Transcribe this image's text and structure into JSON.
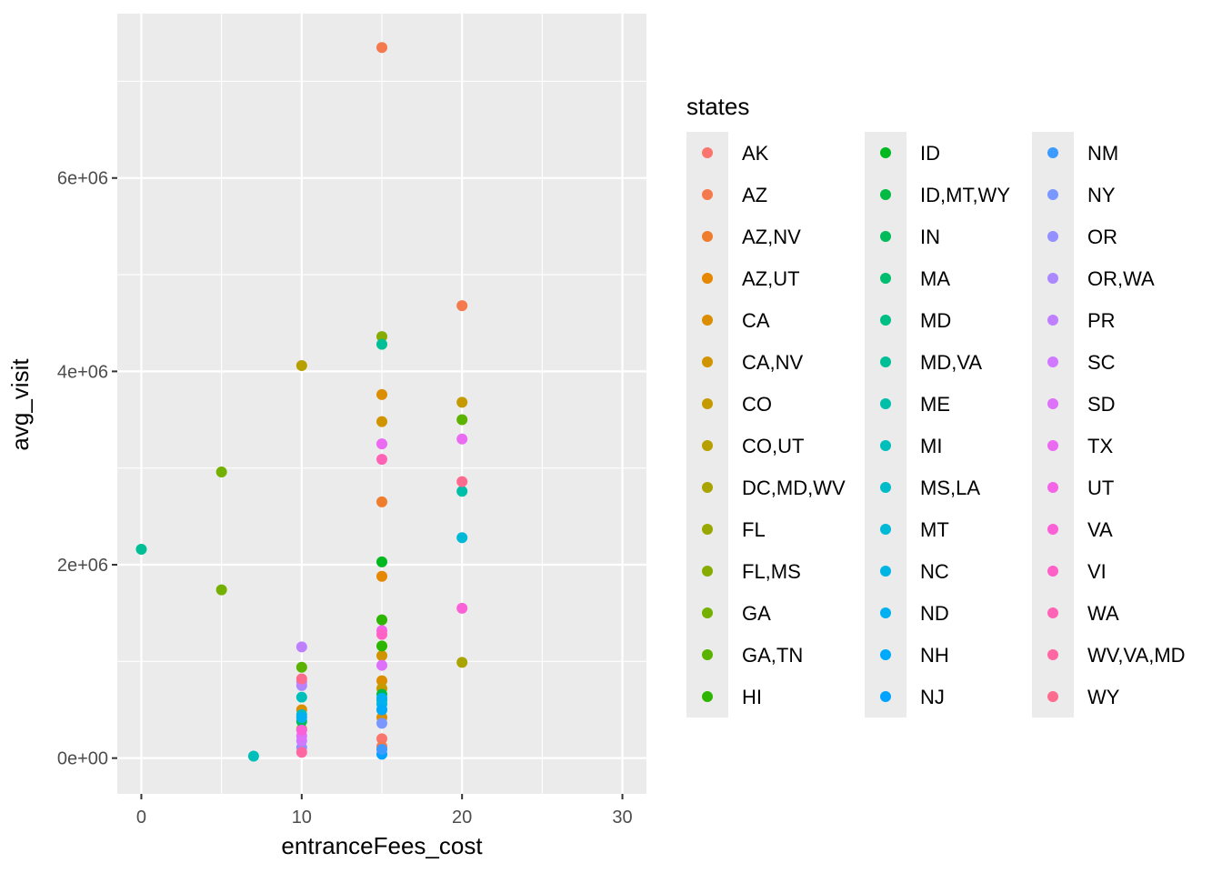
{
  "chart_data": {
    "type": "scatter",
    "title": "",
    "xlabel": "entranceFees_cost",
    "ylabel": "avg_visit",
    "xlim": [
      -1.5,
      31.5
    ],
    "ylim": [
      -370000,
      7700000
    ],
    "x_ticks": [
      0,
      10,
      20,
      30
    ],
    "x_tick_labels": [
      "0",
      "10",
      "20",
      "30"
    ],
    "x_minor_ticks": [
      5,
      15,
      25
    ],
    "y_ticks": [
      0,
      2000000,
      4000000,
      6000000
    ],
    "y_tick_labels": [
      "0e+00",
      "2e+06",
      "4e+06",
      "6e+06"
    ],
    "y_minor_ticks": [
      1000000,
      3000000,
      5000000,
      7000000
    ],
    "grid": true,
    "legend": {
      "title": "states",
      "placement": "right",
      "columns": 3,
      "rows_per_column": 14
    },
    "series": [
      {
        "name": "AK",
        "color": "#F8766D",
        "points": [
          [
            15,
            200000
          ]
        ]
      },
      {
        "name": "AZ",
        "color": "#F47A4E",
        "points": [
          [
            15,
            7350000
          ],
          [
            20,
            4680000
          ],
          [
            15,
            120000
          ]
        ]
      },
      {
        "name": "AZ,NV",
        "color": "#EE7D2E",
        "points": [
          [
            15,
            2650000
          ]
        ]
      },
      {
        "name": "AZ,UT",
        "color": "#E58700",
        "points": [
          [
            15,
            1880000
          ]
        ]
      },
      {
        "name": "CA",
        "color": "#DB8E00",
        "points": [
          [
            15,
            3760000
          ],
          [
            15,
            800000
          ],
          [
            15,
            420000
          ],
          [
            10,
            500000
          ]
        ]
      },
      {
        "name": "CA,NV",
        "color": "#D09400",
        "points": [
          [
            15,
            3480000
          ],
          [
            15,
            1060000
          ]
        ]
      },
      {
        "name": "CO",
        "color": "#C49A00",
        "points": [
          [
            20,
            3680000
          ],
          [
            15,
            720000
          ]
        ]
      },
      {
        "name": "CO,UT",
        "color": "#B79F00",
        "points": [
          [
            10,
            4060000
          ]
        ]
      },
      {
        "name": "DC,MD,WV",
        "color": "#A9A400",
        "points": [
          [
            20,
            990000
          ]
        ]
      },
      {
        "name": "FL",
        "color": "#99A800",
        "points": [
          [
            10,
            300000
          ]
        ]
      },
      {
        "name": "FL,MS",
        "color": "#87AC00",
        "points": [
          [
            15,
            4360000
          ]
        ]
      },
      {
        "name": "GA",
        "color": "#74B000",
        "points": [
          [
            5,
            2960000
          ],
          [
            5,
            1740000
          ]
        ]
      },
      {
        "name": "GA,TN",
        "color": "#5BB300",
        "points": [
          [
            20,
            3500000
          ],
          [
            10,
            940000
          ]
        ]
      },
      {
        "name": "HI",
        "color": "#2DB600",
        "points": [
          [
            15,
            1430000
          ],
          [
            15,
            1160000
          ]
        ]
      },
      {
        "name": "ID",
        "color": "#00B81F",
        "points": [
          [
            15,
            2030000
          ]
        ]
      },
      {
        "name": "ID,MT,WY",
        "color": "#00BA42",
        "points": [
          [
            15,
            660000
          ]
        ]
      },
      {
        "name": "IN",
        "color": "#00BB5A",
        "points": [
          [
            10,
            380000
          ]
        ]
      },
      {
        "name": "MA",
        "color": "#00BD70",
        "points": [
          [
            15,
            600000
          ]
        ]
      },
      {
        "name": "MD",
        "color": "#00BE84",
        "points": [
          [
            15,
            500000
          ]
        ]
      },
      {
        "name": "MD,VA",
        "color": "#00BF96",
        "points": [
          [
            15,
            4280000
          ],
          [
            0,
            2160000
          ]
        ]
      },
      {
        "name": "ME",
        "color": "#00BFA8",
        "points": [
          [
            20,
            2760000
          ]
        ]
      },
      {
        "name": "MI",
        "color": "#00BEB9",
        "points": [
          [
            7,
            20000
          ],
          [
            10,
            630000
          ]
        ]
      },
      {
        "name": "MS,LA",
        "color": "#00BCC8",
        "points": [
          [
            10,
            450000
          ]
        ]
      },
      {
        "name": "MT",
        "color": "#00B9D7",
        "points": [
          [
            20,
            2280000
          ]
        ]
      },
      {
        "name": "NC",
        "color": "#00B5E4",
        "points": [
          [
            15,
            560000
          ]
        ]
      },
      {
        "name": "ND",
        "color": "#00B0F0",
        "points": [
          [
            15,
            620000
          ],
          [
            10,
            420000
          ]
        ]
      },
      {
        "name": "NH",
        "color": "#00AAFA",
        "points": [
          [
            15,
            500000
          ]
        ]
      },
      {
        "name": "NJ",
        "color": "#00A3FF",
        "points": [
          [
            15,
            40000
          ]
        ]
      },
      {
        "name": "NM",
        "color": "#3D9BFF",
        "points": [
          [
            15,
            90000
          ]
        ]
      },
      {
        "name": "NY",
        "color": "#7997FF",
        "points": [
          [
            15,
            360000
          ]
        ]
      },
      {
        "name": "OR",
        "color": "#9590FF",
        "points": [
          [
            10,
            110000
          ]
        ]
      },
      {
        "name": "OR,WA",
        "color": "#AC88FF",
        "points": [
          [
            10,
            750000
          ]
        ]
      },
      {
        "name": "PR",
        "color": "#BF80FF",
        "points": [
          [
            10,
            1150000
          ],
          [
            10,
            790000
          ]
        ]
      },
      {
        "name": "SC",
        "color": "#D078FF",
        "points": [
          [
            10,
            180000
          ]
        ]
      },
      {
        "name": "SD",
        "color": "#DE71F9",
        "points": [
          [
            15,
            960000
          ],
          [
            10,
            230000
          ]
        ]
      },
      {
        "name": "TX",
        "color": "#EA6AF1",
        "points": [
          [
            15,
            3250000
          ],
          [
            20,
            3300000
          ]
        ]
      },
      {
        "name": "UT",
        "color": "#F365E6",
        "points": [
          [
            15,
            1320000
          ]
        ]
      },
      {
        "name": "VA",
        "color": "#FB61D7",
        "points": [
          [
            20,
            1550000
          ],
          [
            10,
            290000
          ]
        ]
      },
      {
        "name": "VI",
        "color": "#FF61C7",
        "points": [
          [
            15,
            1280000
          ]
        ]
      },
      {
        "name": "WA",
        "color": "#FF63B6",
        "points": [
          [
            15,
            3090000
          ]
        ]
      },
      {
        "name": "WV,VA,MD",
        "color": "#FF67A3",
        "points": [
          [
            10,
            60000
          ]
        ]
      },
      {
        "name": "WY",
        "color": "#FD6C8F",
        "points": [
          [
            20,
            2860000
          ],
          [
            10,
            820000
          ]
        ]
      }
    ]
  }
}
